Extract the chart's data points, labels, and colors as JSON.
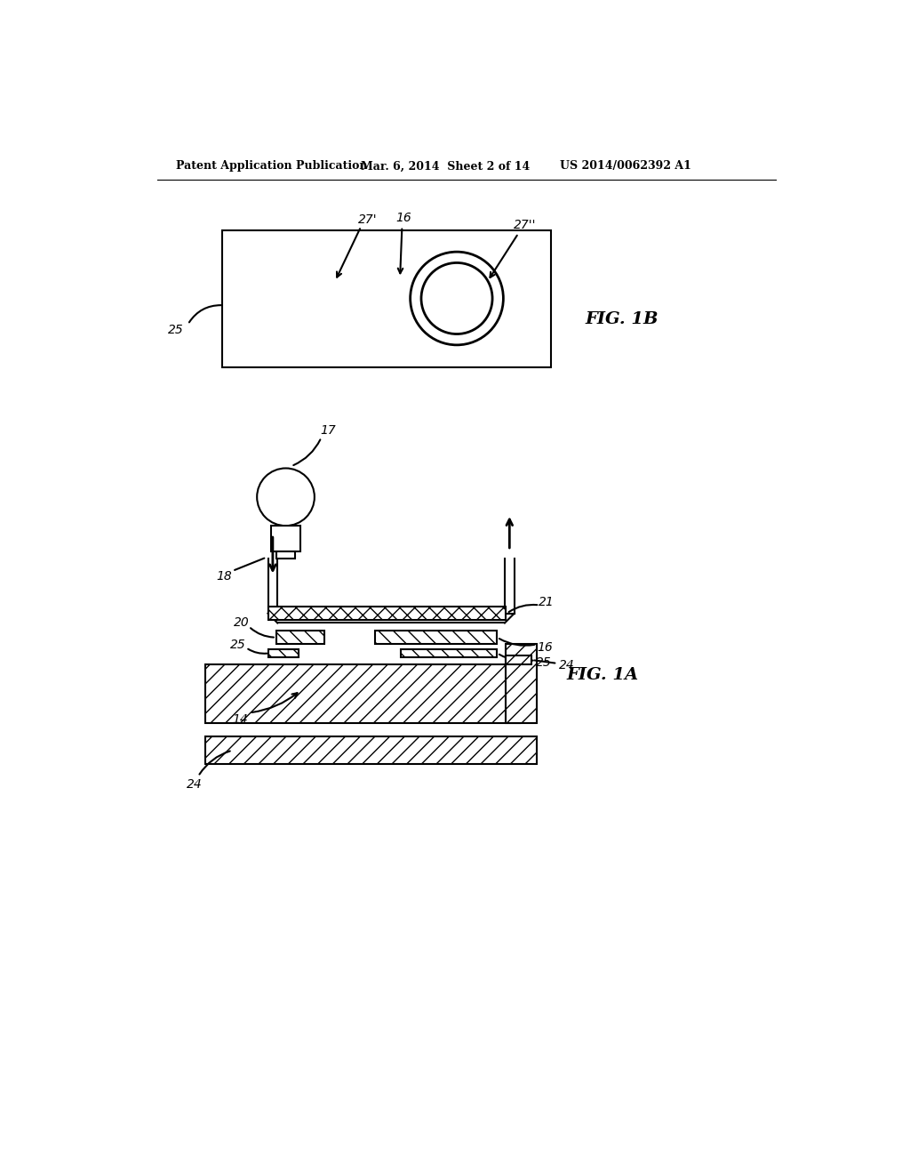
{
  "bg_color": "#ffffff",
  "header_left": "Patent Application Publication",
  "header_mid": "Mar. 6, 2014  Sheet 2 of 14",
  "header_right": "US 2014/0062392 A1",
  "fig1b_label": "FIG. 1B",
  "fig1a_label": "FIG. 1A",
  "line_color": "#000000"
}
